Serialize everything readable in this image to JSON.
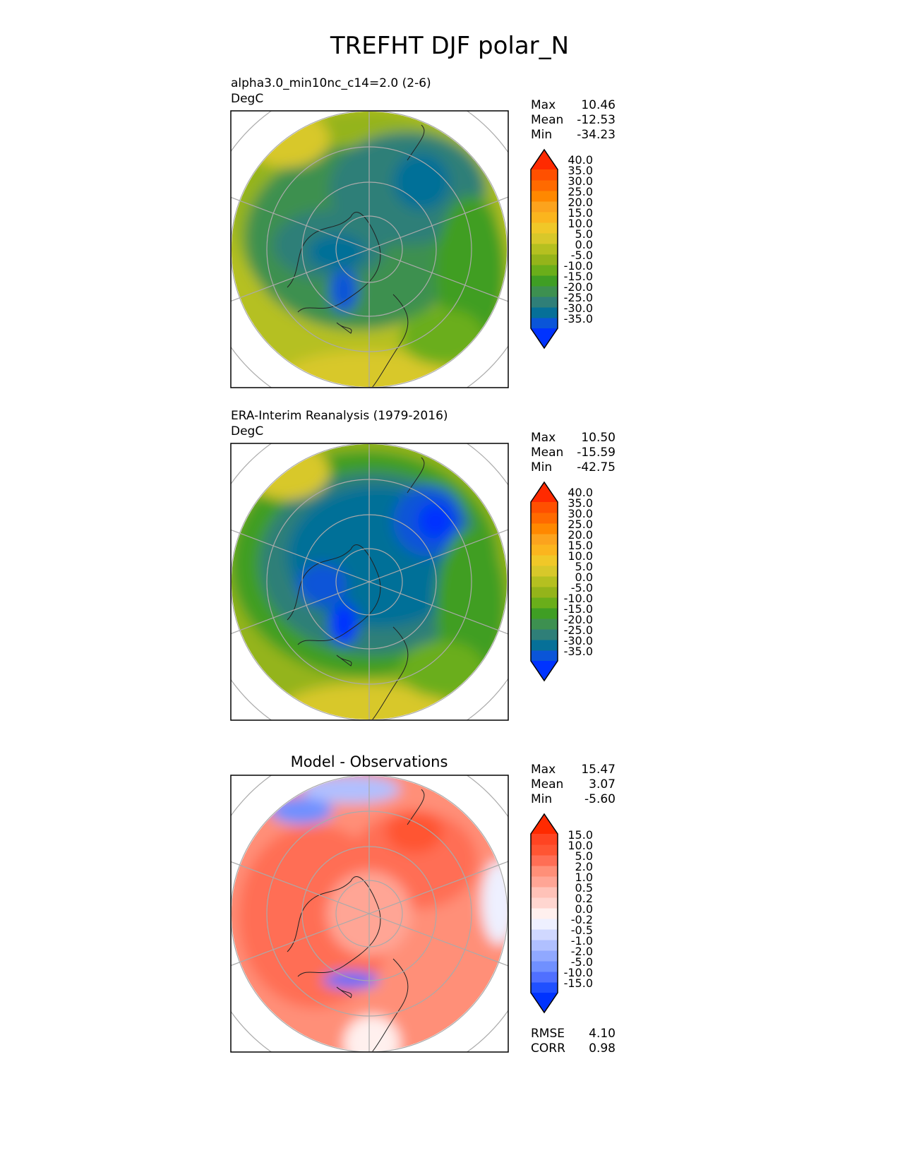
{
  "chart_data": {
    "type": "heatmap",
    "title": "TREFHT DJF polar_N",
    "panels": [
      {
        "id": "model",
        "title": "alpha3.0_min10nc_c14=2.0 (2-6)",
        "units": "DegC",
        "stats": {
          "max_label": "Max",
          "max": "10.46",
          "mean_label": "Mean",
          "mean": "-12.53",
          "min_label": "Min",
          "min": "-34.23"
        },
        "colorbar": {
          "levels": [
            "-35.0",
            "-30.0",
            "-25.0",
            "-20.0",
            "-15.0",
            "-10.0",
            "-5.0",
            "0.0",
            "5.0",
            "10.0",
            "15.0",
            "20.0",
            "25.0",
            "30.0",
            "35.0",
            "40.0"
          ],
          "colors": [
            "#0033ff",
            "#0a55d8",
            "#067098",
            "#2f7f78",
            "#3d9050",
            "#3f9e24",
            "#6aae1a",
            "#94b41a",
            "#b5c020",
            "#d8c82a",
            "#f0c828",
            "#fbb51e",
            "#fca31d",
            "#ff8800",
            "#ff6a00",
            "#ff5000",
            "#ff2a00"
          ]
        }
      },
      {
        "id": "obs",
        "title": "ERA-Interim Reanalysis (1979-2016)",
        "units": "DegC",
        "stats": {
          "max_label": "Max",
          "max": "10.50",
          "mean_label": "Mean",
          "mean": "-15.59",
          "min_label": "Min",
          "min": "-42.75"
        },
        "colorbar": {
          "levels": [
            "-35.0",
            "-30.0",
            "-25.0",
            "-20.0",
            "-15.0",
            "-10.0",
            "-5.0",
            "0.0",
            "5.0",
            "10.0",
            "15.0",
            "20.0",
            "25.0",
            "30.0",
            "35.0",
            "40.0"
          ],
          "colors": [
            "#0033ff",
            "#0a55d8",
            "#067098",
            "#2f7f78",
            "#3d9050",
            "#3f9e24",
            "#6aae1a",
            "#94b41a",
            "#b5c020",
            "#d8c82a",
            "#f0c828",
            "#fbb51e",
            "#fca31d",
            "#ff8800",
            "#ff6a00",
            "#ff5000",
            "#ff2a00"
          ]
        }
      },
      {
        "id": "diff",
        "title": "Model - Observations",
        "units": "",
        "stats": {
          "max_label": "Max",
          "max": "15.47",
          "mean_label": "Mean",
          "mean": "3.07",
          "min_label": "Min",
          "min": "-5.60"
        },
        "colorbar": {
          "levels": [
            "-15.0",
            "-10.0",
            "-5.0",
            "-2.0",
            "-1.0",
            "-0.5",
            "-0.2",
            "0.0",
            "0.2",
            "0.5",
            "1.0",
            "2.0",
            "5.0",
            "10.0",
            "15.0"
          ],
          "colors": [
            "#0033ff",
            "#2050ff",
            "#5070ff",
            "#7090ff",
            "#90a8ff",
            "#b0c0ff",
            "#d0d8ff",
            "#eef0ff",
            "#fff0ee",
            "#ffd6d0",
            "#ffc2b8",
            "#ffa595",
            "#ff8f78",
            "#ff6e55",
            "#ff5533",
            "#ff4422",
            "#ff2a00"
          ]
        },
        "metrics": {
          "rmse_label": "RMSE",
          "rmse": "4.10",
          "corr_label": "CORR",
          "corr": "0.98"
        }
      }
    ]
  }
}
